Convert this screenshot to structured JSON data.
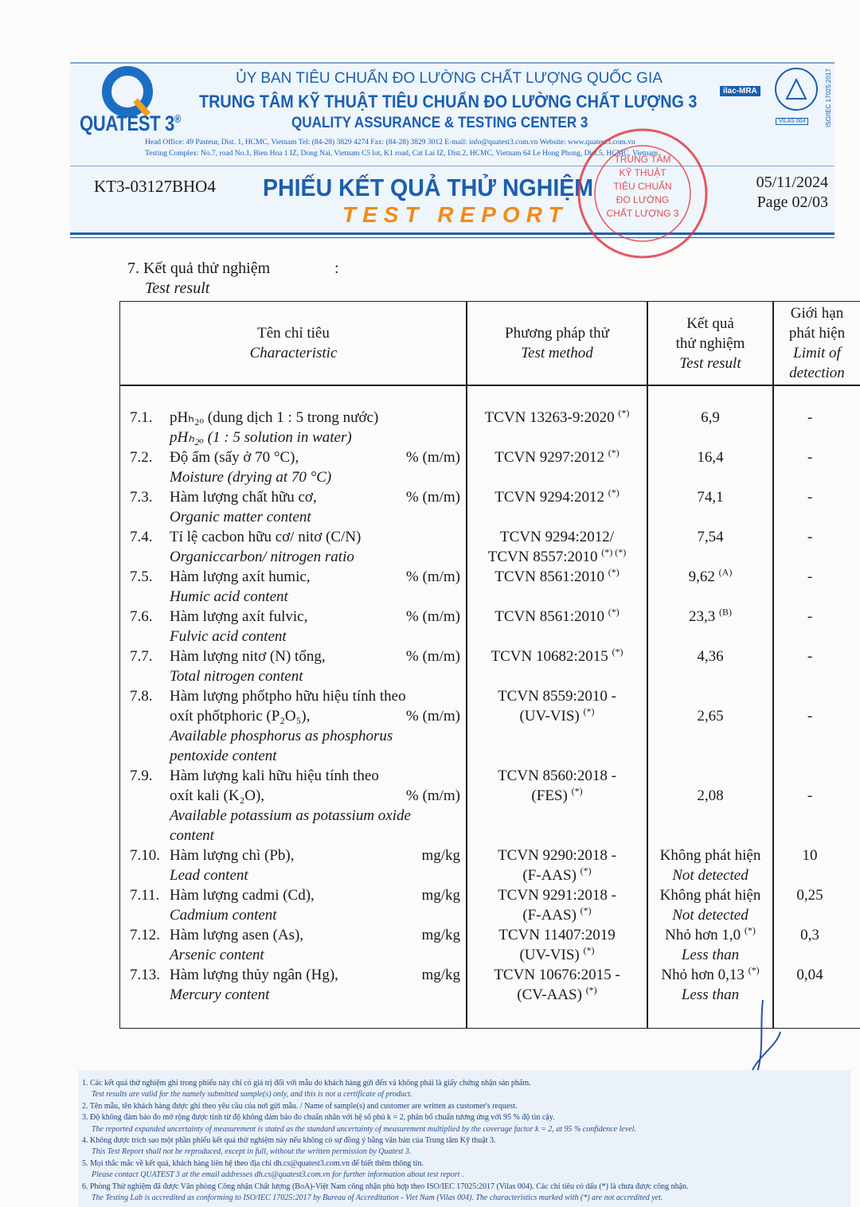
{
  "header": {
    "logo": "QUATEST 3",
    "logo_mark": "®",
    "agency": "ỦY BAN TIÊU CHUẨN ĐO LƯỜNG CHẤT LƯỢNG QUỐC GIA",
    "center_vi": "TRUNG TÂM KỸ THUẬT TIÊU CHUẨN ĐO LƯỜNG CHẤT LƯỢNG 3",
    "center_en": "QUALITY ASSURANCE & TESTING CENTER 3",
    "address_1": "Head Office: 49 Pasteur, Dist. 1, HCMC, Vietnam     Tel: (84-28) 3829 4274     Fax: (84-28) 3829 3012     E-mail: info@quatest3.com.vn     Website: www.quatest3.com.vn",
    "address_2": "Testing Complex: No.7, road No.1, Bien Hoa 1 IZ, Dong Nai, Vietnam  C5 lot, K1 road, Cat Lai IZ, Dist.2, HCMC, Vietnam  64 Le Hong Phong, Dist.5, HCMC, Vietnam",
    "badge_ilac": "ilac-MRA",
    "badge_vilas": "VILAS 004",
    "badge_iso": "ISO/IEC 17025:2017"
  },
  "report": {
    "code": "KT3-03127BHO4",
    "title_vi": "PHIẾU KẾT QUẢ THỬ NGHIỆM",
    "title_en": "TEST REPORT",
    "date": "05/11/2024",
    "page": "Page 02/03"
  },
  "stamp": {
    "lines": [
      "TRUNG TÂM",
      "KỸ THUẬT",
      "TIÊU CHUẨN",
      "ĐO LƯỜNG",
      "CHẤT LƯỢNG 3"
    ]
  },
  "section": {
    "title_vi": "7. Kết quả thử nghiệm",
    "colon": ":",
    "title_en": "Test result"
  },
  "table": {
    "columns": [
      {
        "vi": [
          "Tên chỉ tiêu"
        ],
        "en": [
          "Characteristic"
        ]
      },
      {
        "vi": [
          "Phương pháp thử"
        ],
        "en": [
          "Test method"
        ]
      },
      {
        "vi": [
          "Kết quả",
          "thử nghiệm"
        ],
        "en": [
          "Test result"
        ]
      },
      {
        "vi": [
          "Giới hạn",
          "phát hiện"
        ],
        "en": [
          "Limit of",
          "detection"
        ]
      }
    ],
    "rows": [
      {
        "no": "7.1.",
        "name_vi": [
          "pHₕ₂ₒ (dung dịch 1 : 5 trong nước)"
        ],
        "unit": "",
        "name_en": [
          "pHₕ₂ₒ (1 : 5 solution in water)"
        ],
        "method": [
          "TCVN 13263-9:2020"
        ],
        "method_note": "(*)",
        "result": "6,9",
        "result_note": "",
        "result_en": "",
        "lod": "-"
      },
      {
        "no": "7.2.",
        "name_vi": [
          "Độ ẩm (sấy ở 70 °C),"
        ],
        "unit": "% (m/m)",
        "name_en": [
          "Moisture (drying at 70 °C)"
        ],
        "method": [
          "TCVN 9297:2012"
        ],
        "method_note": "(*)",
        "result": "16,4",
        "result_note": "",
        "result_en": "",
        "lod": "-"
      },
      {
        "no": "7.3.",
        "name_vi": [
          "Hàm lượng chất hữu cơ,"
        ],
        "unit": "% (m/m)",
        "name_en": [
          "Organic matter content"
        ],
        "method": [
          "TCVN 9294:2012"
        ],
        "method_note": "(*)",
        "result": "74,1",
        "result_note": "",
        "result_en": "",
        "lod": "-"
      },
      {
        "no": "7.4.",
        "name_vi": [
          "Tỉ lệ cacbon hữu cơ/ nitơ (C/N)"
        ],
        "unit": "",
        "name_en": [
          "Organiccarbon/ nitrogen ratio"
        ],
        "method": [
          "TCVN 9294:2012/",
          "TCVN 8557:2010"
        ],
        "method_note": "(*) (*)",
        "result": "7,54",
        "result_note": "",
        "result_en": "",
        "lod": "-"
      },
      {
        "no": "7.5.",
        "name_vi": [
          "Hàm lượng axít humic,"
        ],
        "unit": "% (m/m)",
        "name_en": [
          "Humic acid content"
        ],
        "method": [
          "TCVN 8561:2010"
        ],
        "method_note": "(*)",
        "result": "9,62",
        "result_note": "(A)",
        "result_en": "",
        "lod": "-"
      },
      {
        "no": "7.6.",
        "name_vi": [
          "Hàm lượng axít fulvic,"
        ],
        "unit": "% (m/m)",
        "name_en": [
          "Fulvic acid content"
        ],
        "method": [
          "TCVN 8561:2010"
        ],
        "method_note": "(*)",
        "result": "23,3",
        "result_note": "(B)",
        "result_en": "",
        "lod": "-"
      },
      {
        "no": "7.7.",
        "name_vi": [
          "Hàm lượng nitơ (N) tổng,"
        ],
        "unit": "% (m/m)",
        "name_en": [
          "Total nitrogen content"
        ],
        "method": [
          "TCVN 10682:2015"
        ],
        "method_note": "(*)",
        "result": "4,36",
        "result_note": "",
        "result_en": "",
        "lod": "-"
      },
      {
        "no": "7.8.",
        "name_vi": [
          "Hàm lượng phốtpho hữu hiệu tính theo",
          "oxít phốtphoric (P₂O₅),"
        ],
        "unit": "% (m/m)",
        "name_en": [
          "Available phosphorus as phosphorus",
          "pentoxide content"
        ],
        "method": [
          "TCVN 8559:2010 -",
          "(UV-VIS)"
        ],
        "method_note": "(*)",
        "result": "2,65",
        "result_note": "",
        "result_en": "",
        "lod": "-"
      },
      {
        "no": "7.9.",
        "name_vi": [
          "Hàm lượng kali hữu hiệu tính theo",
          "oxít kali (K₂O),"
        ],
        "unit": "% (m/m)",
        "name_en": [
          "Available potassium as potassium oxide",
          "content"
        ],
        "method": [
          "TCVN 8560:2018 -",
          "(FES)"
        ],
        "method_note": "(*)",
        "result": "2,08",
        "result_note": "",
        "result_en": "",
        "lod": "-"
      },
      {
        "no": "7.10.",
        "name_vi": [
          "Hàm lượng chì (Pb),"
        ],
        "unit": "mg/kg",
        "name_en": [
          "Lead content"
        ],
        "method": [
          "TCVN 9290:2018 -",
          "(F-AAS)"
        ],
        "method_note": "(*)",
        "result": "Không phát hiện",
        "result_note": "",
        "result_en": "Not detected",
        "lod": "10"
      },
      {
        "no": "7.11.",
        "name_vi": [
          "Hàm lượng cadmi (Cd),"
        ],
        "unit": "mg/kg",
        "name_en": [
          "Cadmium content"
        ],
        "method": [
          "TCVN 9291:2018 -",
          "(F-AAS)"
        ],
        "method_note": "(*)",
        "result": "Không phát hiện",
        "result_note": "",
        "result_en": "Not detected",
        "lod": "0,25"
      },
      {
        "no": "7.12.",
        "name_vi": [
          "Hàm lượng asen (As),"
        ],
        "unit": "mg/kg",
        "name_en": [
          "Arsenic content"
        ],
        "method": [
          "TCVN 11407:2019",
          "(UV-VIS)"
        ],
        "method_note": "(*)",
        "result": "Nhỏ hơn 1,0",
        "result_note": "(*)",
        "result_en": "Less than",
        "lod": "0,3"
      },
      {
        "no": "7.13.",
        "name_vi": [
          "Hàm lượng thủy ngân (Hg),"
        ],
        "unit": "mg/kg",
        "name_en": [
          "Mercury content"
        ],
        "method": [
          "TCVN 10676:2015 -",
          "(CV-AAS)"
        ],
        "method_note": "(*)",
        "result": "Nhỏ hơn 0,13",
        "result_note": "(*)",
        "result_en": "Less than",
        "lod": "0,04"
      }
    ]
  },
  "footnotes": [
    {
      "vi": "1. Các kết quả thử nghiệm ghi trong phiếu này chỉ có giá trị đối với mẫu do khách hàng gửi đến và không phải là giấy chứng nhận sản phẩm.",
      "en": "Test results are valid for the namely submitted sample(s) only, and this is not a certificate of product."
    },
    {
      "vi": "2. Tên mẫu, tên khách hàng được ghi theo yêu cầu của nơi gửi mẫu. / Name of sample(s) and customer are written as customer's request.",
      "en": ""
    },
    {
      "vi": "3. Độ không đảm bảo đo mở rộng được tính từ độ không đảm bảo đo chuẩn nhân với hệ số phủ k = 2, phân bố chuẩn tương ứng với 95 % độ tin cậy.",
      "en": "The reported expanded uncertainty of measurement is stated as the standard uncertainty of measurement multiplied by the coverage factor k = 2, at 95 % confidence level."
    },
    {
      "vi": "4. Không được trích sao một phần phiếu kết quả thử nghiệm này nếu không có sự đồng ý bằng văn bản của Trung tâm Kỹ thuật 3.",
      "en": "This Test Report shall not be reproduced, except in full, without the written permission by Quatest 3."
    },
    {
      "vi": "5. Mọi thắc mắc về kết quả, khách hàng liên hệ theo địa chỉ dh.cs@quatest3.com.vn để biết thêm thông tin.",
      "en": "Please contact QUATEST 3 at the email addresses dh.cs@quatest3.com.vn for further information about test report ."
    },
    {
      "vi": "6. Phòng Thử nghiệm đã được Văn phòng Công nhận Chất lượng (BoA)-Việt Nam công nhận phù hợp theo ISO/IEC 17025:2017 (Vilas 004). Các chỉ tiêu có dấu (*) là chưa được công nhận.",
      "en": "The Testing Lab is accredited as conforming to ISO/IEC 17025:2017 by Bureau of Accreditation - Viet Nam (Vilas 004). The characteristics marked with (*) are not accredited yet."
    }
  ]
}
